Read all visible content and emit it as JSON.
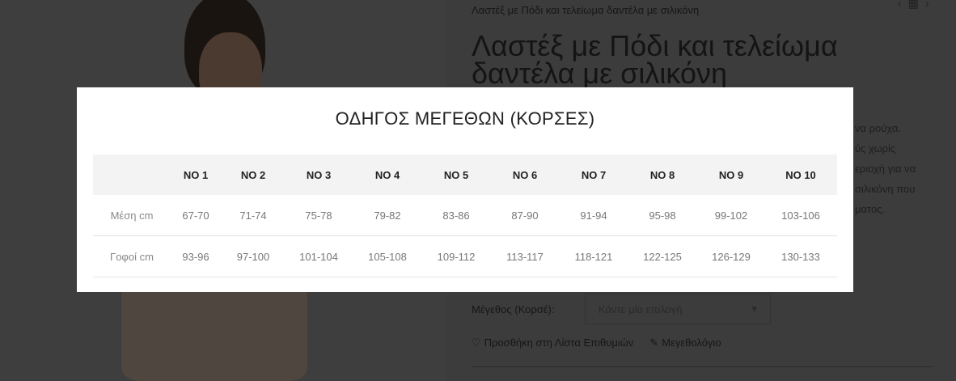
{
  "product": {
    "breadcrumb": "Λαστέξ με Πόδι και τελείωμα δαντέλα με σιλικόνη",
    "nav": {
      "prev_icon": "chevron-left-icon",
      "grid_icon": "grid-icon",
      "next_icon": "chevron-right-icon"
    },
    "title": "Λαστέξ με Πόδι και τελείωμα δαντέλα με σιλικόνη",
    "description_fragments": [
      "να ρούχα.",
      "ύς χωρίς",
      "εριοχή για να",
      "σιλικόνη που",
      "ματος."
    ],
    "size_label": "Μέγεθος (Κορσέ):",
    "size_select_placeholder": "Κάντε μία επιλογή",
    "wishlist_label": "Προσθήκη στη Λίστα Επιθυμιών",
    "size_chart_label": "Μεγεθολόγιο"
  },
  "modal": {
    "title": "ΟΔΗΓΟΣ ΜΕΓΕΘΩΝ (ΚΟΡΣΕΣ)",
    "columns": [
      "",
      "NO 1",
      "NO 2",
      "NO 3",
      "NO 4",
      "NO 5",
      "NO 6",
      "NO 7",
      "NO 8",
      "NO 9",
      "NO 10"
    ],
    "rows": [
      {
        "label": "Μέση cm",
        "values": [
          "67-70",
          "71-74",
          "75-78",
          "79-82",
          "83-86",
          "87-90",
          "91-94",
          "95-98",
          "99-102",
          "103-106"
        ]
      },
      {
        "label": "Γοφοί cm",
        "values": [
          "93-96",
          "97-100",
          "101-104",
          "105-108",
          "109-112",
          "113-117",
          "118-121",
          "122-125",
          "126-129",
          "130-133"
        ]
      }
    ]
  }
}
